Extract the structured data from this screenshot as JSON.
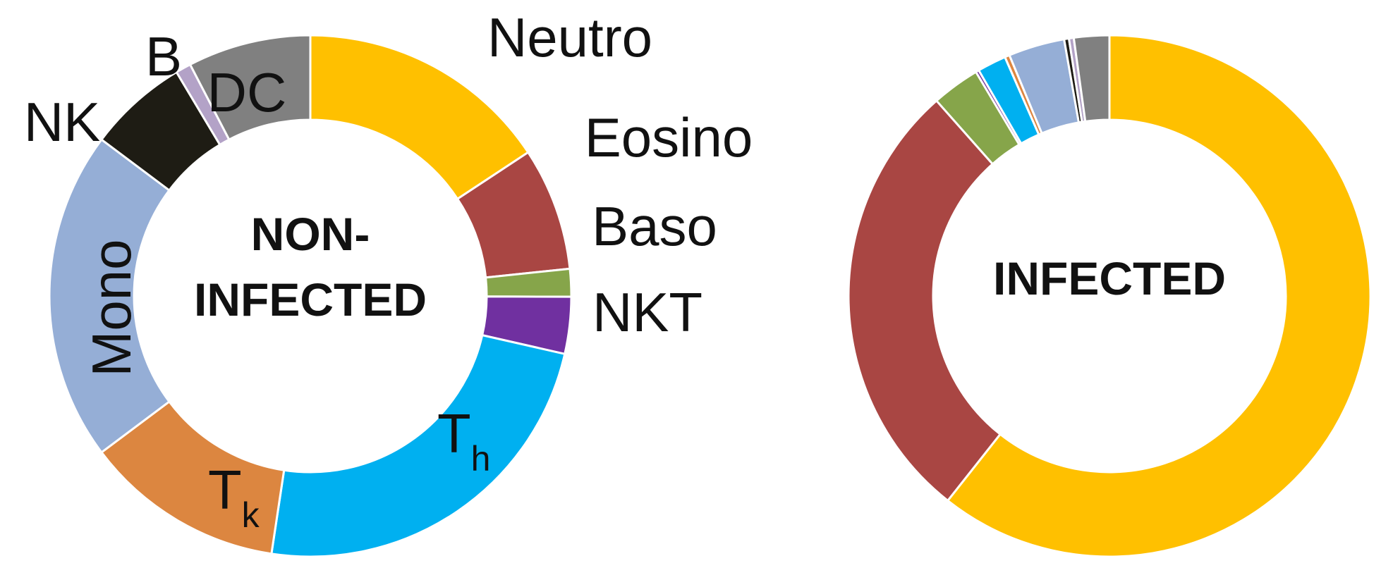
{
  "chart_data": [
    {
      "type": "pie",
      "variant": "donut",
      "center_label": [
        "NON-",
        "INFECTED"
      ],
      "start": "top",
      "direction": "clockwise",
      "slices": [
        {
          "name": "Neutro",
          "label": "Neutro",
          "value": 16.5,
          "color": "#FFC000"
        },
        {
          "name": "Eosino",
          "label": "Eosino",
          "value": 8.0,
          "color": "#A94643"
        },
        {
          "name": "Baso",
          "label": "Baso",
          "value": 1.8,
          "color": "#86A54A"
        },
        {
          "name": "NKT",
          "label": "NKT",
          "value": 3.7,
          "color": "#7030A0"
        },
        {
          "name": "Th",
          "label": "T",
          "sub": "h",
          "value": 25.0,
          "color": "#00B0F0"
        },
        {
          "name": "Tk",
          "label": "T",
          "sub": "k",
          "value": 13.0,
          "color": "#DC8640"
        },
        {
          "name": "Mono",
          "label": "Mono",
          "value": 21.5,
          "color": "#95AED6"
        },
        {
          "name": "NK",
          "label": "NK",
          "value": 6.5,
          "color": "#1E1C14"
        },
        {
          "name": "B",
          "label": "B",
          "value": 1.0,
          "color": "#B3A2C7"
        },
        {
          "name": "DC",
          "label": "DC",
          "value": 8.0,
          "color": "#808080"
        }
      ]
    },
    {
      "type": "pie",
      "variant": "donut",
      "center_label": [
        "INFECTED"
      ],
      "start": "top",
      "direction": "clockwise",
      "slices": [
        {
          "name": "Neutro",
          "value": 61.0,
          "color": "#FFC000"
        },
        {
          "name": "Eosino",
          "value": 28.0,
          "color": "#A94643"
        },
        {
          "name": "Baso",
          "value": 3.0,
          "color": "#86A54A"
        },
        {
          "name": "NKT",
          "value": 0.2,
          "color": "#7030A0"
        },
        {
          "name": "Th",
          "value": 1.8,
          "color": "#00B0F0"
        },
        {
          "name": "Tk",
          "value": 0.3,
          "color": "#DC8640"
        },
        {
          "name": "Mono",
          "value": 3.5,
          "color": "#95AED6"
        },
        {
          "name": "NK",
          "value": 0.3,
          "color": "#1E1C14"
        },
        {
          "name": "B",
          "value": 0.3,
          "color": "#B3A2C7"
        },
        {
          "name": "DC",
          "value": 2.2,
          "color": "#808080"
        }
      ]
    }
  ]
}
